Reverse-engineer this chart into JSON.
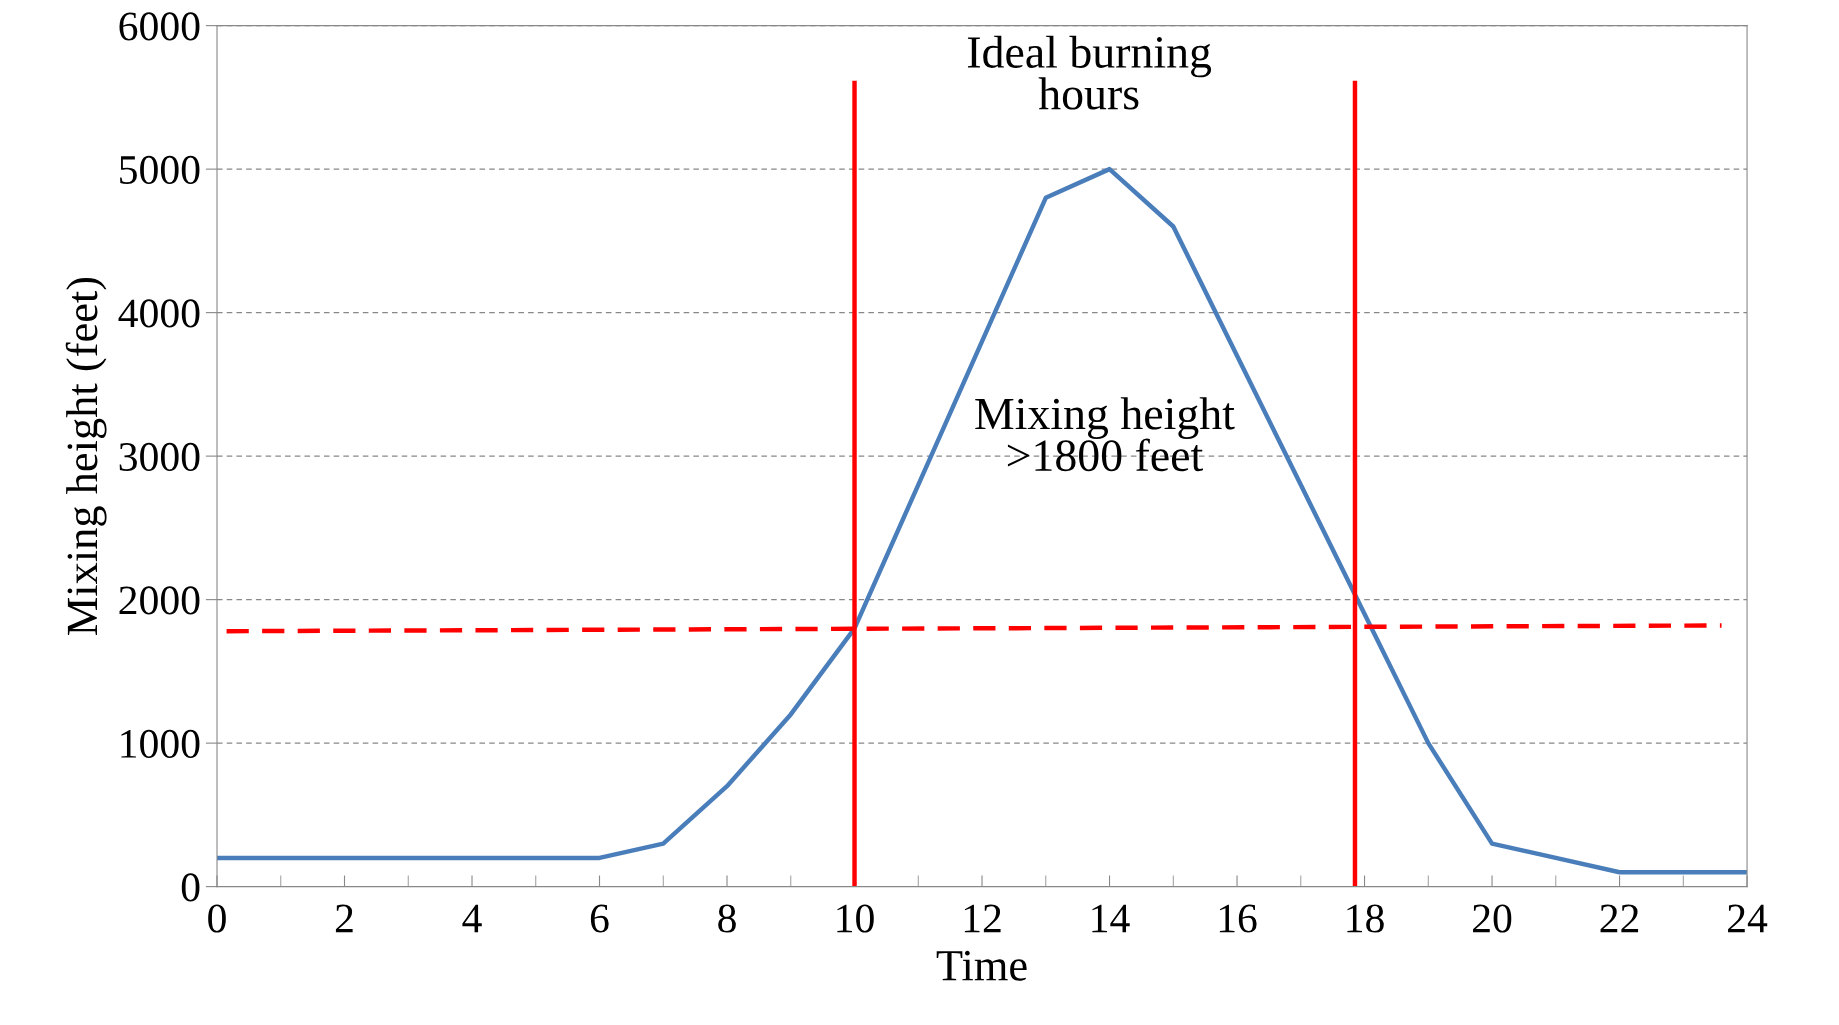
{
  "chart_data": {
    "type": "line",
    "xlabel": "Time",
    "ylabel": "Mixing height (feet)",
    "xlim": [
      0,
      24
    ],
    "xticks": [
      0,
      2,
      4,
      6,
      8,
      10,
      12,
      14,
      16,
      18,
      20,
      22,
      24
    ],
    "ylim": [
      0,
      6000
    ],
    "yticks": [
      0,
      1000,
      2000,
      3000,
      4000,
      5000,
      6000
    ],
    "grid": "y",
    "legend": false,
    "marker": "none",
    "series": [
      {
        "color": "#4a7ebb",
        "line_style": "solid",
        "x": [
          0,
          1,
          2,
          3,
          4,
          5,
          6,
          7,
          8,
          9,
          10,
          11,
          12,
          13,
          14,
          15,
          16,
          17,
          18,
          19,
          20,
          21,
          22,
          23,
          24
        ],
        "values": [
          200,
          200,
          200,
          200,
          200,
          200,
          200,
          300,
          700,
          1200,
          1800,
          2800,
          3800,
          4800,
          5000,
          4600,
          3700,
          2800,
          1900,
          1000,
          300,
          200,
          100,
          100,
          100
        ]
      },
      {
        "color": "#ff0000",
        "line_style": "dashed",
        "x": [
          0.15,
          23.6
        ],
        "values": [
          1780,
          1820
        ]
      },
      {
        "color": "#ff0000",
        "line_style": "solid",
        "x": [
          10,
          10
        ],
        "values": [
          0,
          5600
        ]
      },
      {
        "color": "#ff0000",
        "line_style": "solid",
        "x": [
          17.85,
          17.85
        ],
        "values": [
          0,
          5600
        ]
      }
    ],
    "annotations": [
      "Ideal burning\nhours",
      "Mixing height\n>1800 feet"
    ]
  }
}
